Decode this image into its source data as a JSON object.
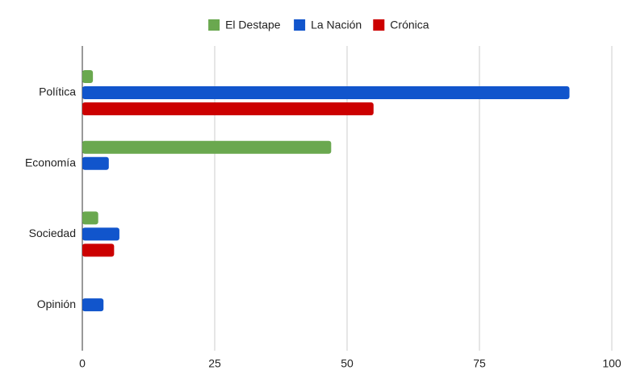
{
  "chart_data": {
    "type": "hbar",
    "categories": [
      "Política",
      "Economía",
      "Sociedad",
      "Opinión"
    ],
    "series": [
      {
        "name": "El Destape",
        "color": "#6aa84f",
        "values": [
          2,
          47,
          3,
          0
        ]
      },
      {
        "name": "La Nación",
        "color": "#1155cc",
        "values": [
          92,
          5,
          7,
          4
        ]
      },
      {
        "name": "Crónica",
        "color": "#cc0000",
        "values": [
          55,
          0,
          6,
          0
        ]
      }
    ],
    "xlim": [
      0,
      100
    ],
    "xticks": [
      0,
      25,
      50,
      75,
      100
    ],
    "grid": true,
    "legend": "top"
  }
}
